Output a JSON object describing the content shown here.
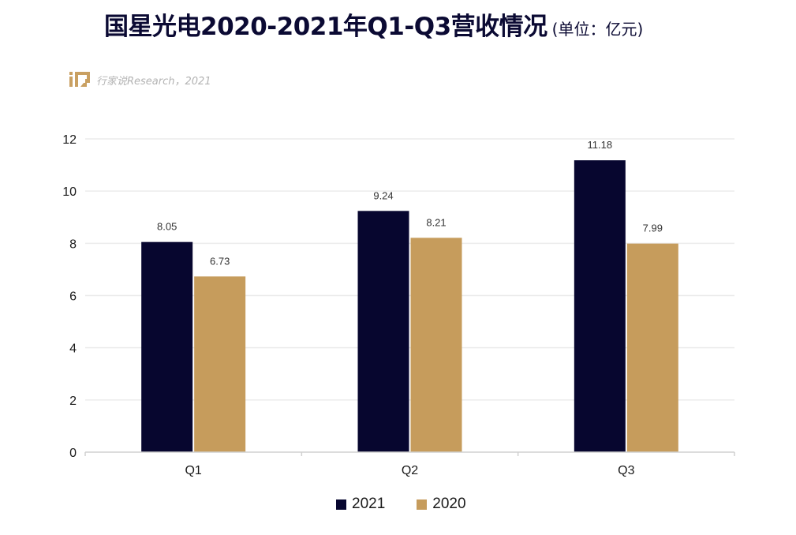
{
  "header": {
    "title": "国星光电2020-2021年Q1-Q3营收情况",
    "unit": "(单位：亿元)"
  },
  "watermark": {
    "text": "行家说Research，2021",
    "logo_icon": "ijp-logo-icon"
  },
  "colors": {
    "s2021": "#07062f",
    "s2020": "#c69c5c",
    "grid": "#ececec",
    "axis": "#d0d0d0"
  },
  "chart_data": {
    "type": "bar",
    "categories": [
      "Q1",
      "Q2",
      "Q3"
    ],
    "series": [
      {
        "name": "2021",
        "values": [
          8.05,
          9.24,
          11.18
        ],
        "labels": [
          "8.05",
          "9.24",
          "11.18"
        ]
      },
      {
        "name": "2020",
        "values": [
          6.73,
          8.21,
          7.99
        ],
        "labels": [
          "6.73",
          "8.21",
          "7.99"
        ]
      }
    ],
    "title": "国星光电2020-2021年Q1-Q3营收情况",
    "ylabel": "",
    "xlabel": "",
    "ylim": [
      0,
      12
    ],
    "yticks": [
      0,
      2,
      4,
      6,
      8,
      10,
      12
    ],
    "grid": true,
    "legend_position": "bottom"
  }
}
